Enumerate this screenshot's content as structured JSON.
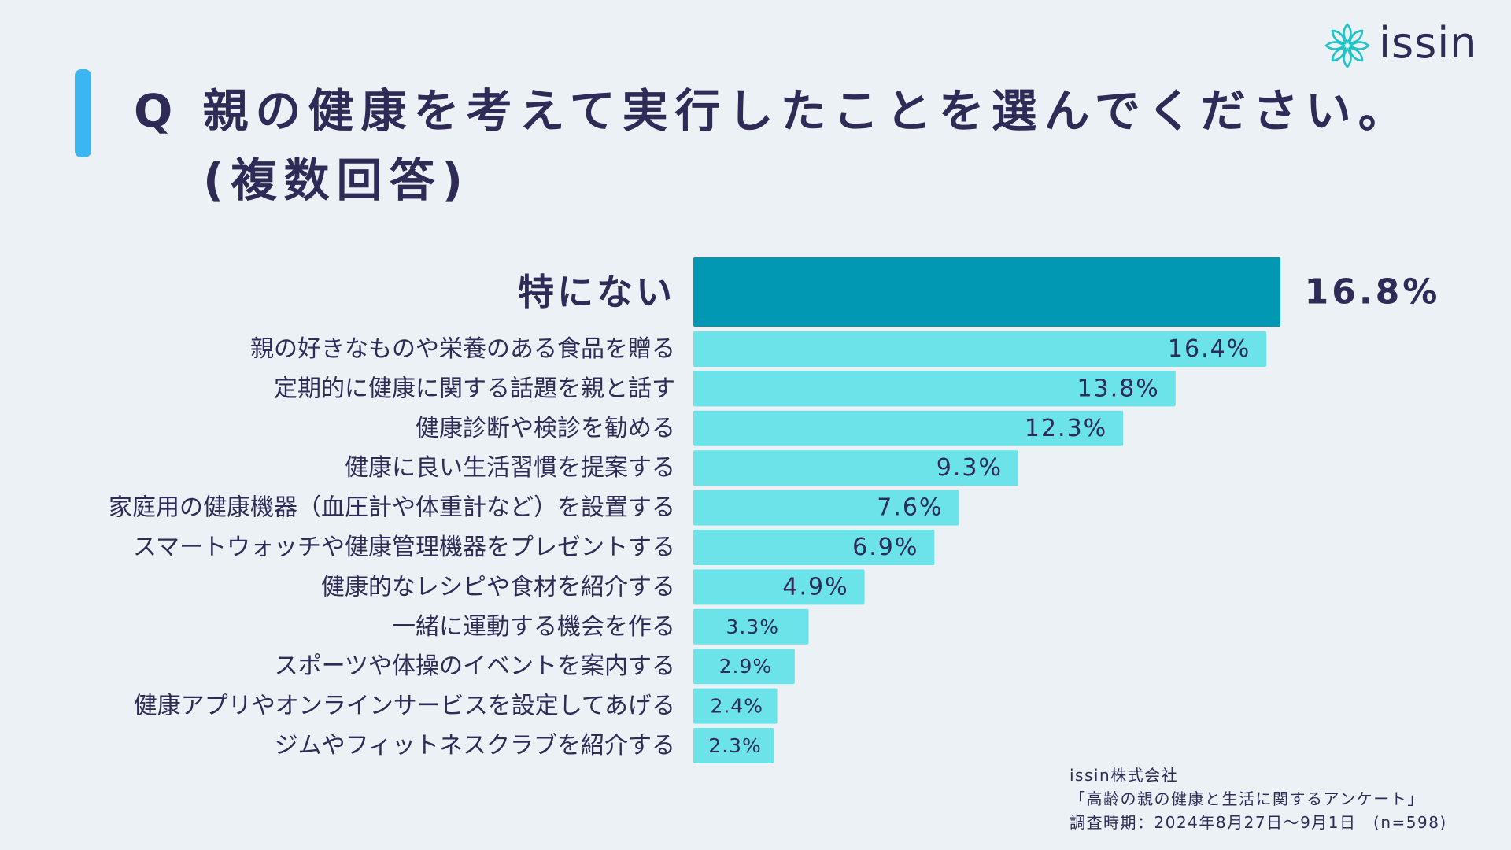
{
  "brand": {
    "name": "issin",
    "color": "#1EC4C8"
  },
  "title": {
    "line1": "Q 親の健康を考えて実行したことを選んでください。",
    "line2": "(複数回答)"
  },
  "colors": {
    "background": "#ECF1F6",
    "accent": "#3DB5F0",
    "top_bar": "#0098B3",
    "bar": "#6BE3E8",
    "text": "#2E2C57"
  },
  "chart_data": {
    "type": "bar",
    "orientation": "horizontal",
    "title": "Q 親の健康を考えて実行したことを選んでください。(複数回答)",
    "xlabel": "",
    "ylabel": "",
    "unit": "%",
    "xlim": [
      0,
      16.8
    ],
    "categories": [
      "特にない",
      "親の好きなものや栄養のある食品を贈る",
      "定期的に健康に関する話題を親と話す",
      "健康診断や検診を勧める",
      "健康に良い生活習慣を提案する",
      "家庭用の健康機器（血圧計や体重計など）を設置する",
      "スマートウォッチや健康管理機器をプレゼントする",
      "健康的なレシピや食材を紹介する",
      "一緒に運動する機会を作る",
      "スポーツや体操のイベントを案内する",
      "健康アプリやオンラインサービスを設定してあげる",
      "ジムやフィットネスクラブを紹介する"
    ],
    "values": [
      16.8,
      16.4,
      13.8,
      12.3,
      9.3,
      7.6,
      6.9,
      4.9,
      3.3,
      2.9,
      2.4,
      2.3
    ],
    "labels": [
      "16.8%",
      "16.4%",
      "13.8%",
      "12.3%",
      "9.3%",
      "7.6%",
      "6.9%",
      "4.9%",
      "3.3%",
      "2.9%",
      "2.4%",
      "2.3%"
    ],
    "highlight_index": 0,
    "grid": false,
    "legend": "none"
  },
  "source": {
    "company": "issin株式会社",
    "survey": "「高齢の親の健康と生活に関するアンケート」",
    "period": "調査時期：2024年8月27日～9月1日　(n=598)"
  }
}
